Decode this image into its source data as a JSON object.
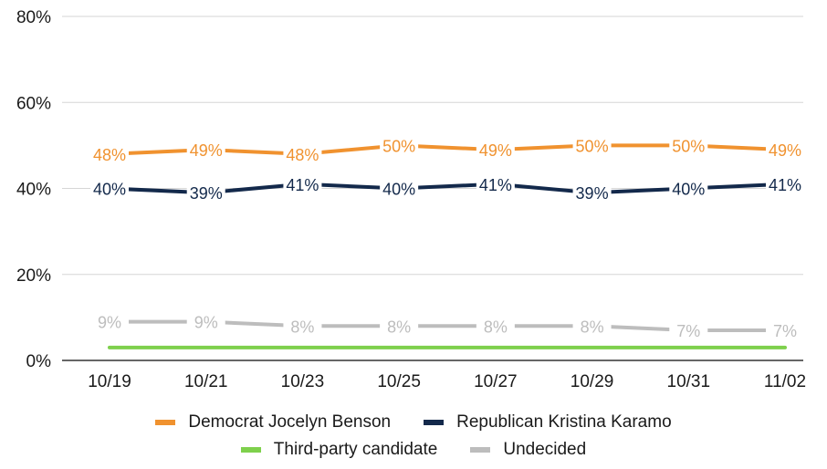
{
  "chart_data": {
    "type": "line",
    "title": "",
    "xlabel": "",
    "ylabel": "",
    "categories": [
      "10/19",
      "10/21",
      "10/23",
      "10/25",
      "10/27",
      "10/29",
      "10/31",
      "11/02"
    ],
    "ylim": [
      0,
      80
    ],
    "y_ticks": [
      0,
      20,
      40,
      60,
      80
    ],
    "y_tick_labels": [
      "0%",
      "20%",
      "40%",
      "60%",
      "80%"
    ],
    "grid": true,
    "legend_position": "bottom",
    "series": [
      {
        "name": "Democrat Jocelyn Benson",
        "color": "#f0922f",
        "values": [
          48,
          49,
          48,
          50,
          49,
          50,
          50,
          49
        ],
        "labels": [
          "48%",
          "49%",
          "48%",
          "50%",
          "49%",
          "50%",
          "50%",
          "49%"
        ]
      },
      {
        "name": "Republican Kristina Karamo",
        "color": "#13294b",
        "values": [
          40,
          39,
          41,
          40,
          41,
          39,
          40,
          41
        ],
        "labels": [
          "40%",
          "39%",
          "41%",
          "40%",
          "41%",
          "39%",
          "40%",
          "41%"
        ]
      },
      {
        "name": "Third-party candidate",
        "color": "#7ed04c",
        "values": [
          3,
          3,
          3,
          3,
          3,
          3,
          3,
          3
        ],
        "labels": []
      },
      {
        "name": "Undecided",
        "color": "#bdbdbd",
        "values": [
          9,
          9,
          8,
          8,
          8,
          8,
          7,
          7
        ],
        "labels": [
          "9%",
          "9%",
          "8%",
          "8%",
          "8%",
          "8%",
          "7%",
          "7%"
        ]
      }
    ]
  }
}
